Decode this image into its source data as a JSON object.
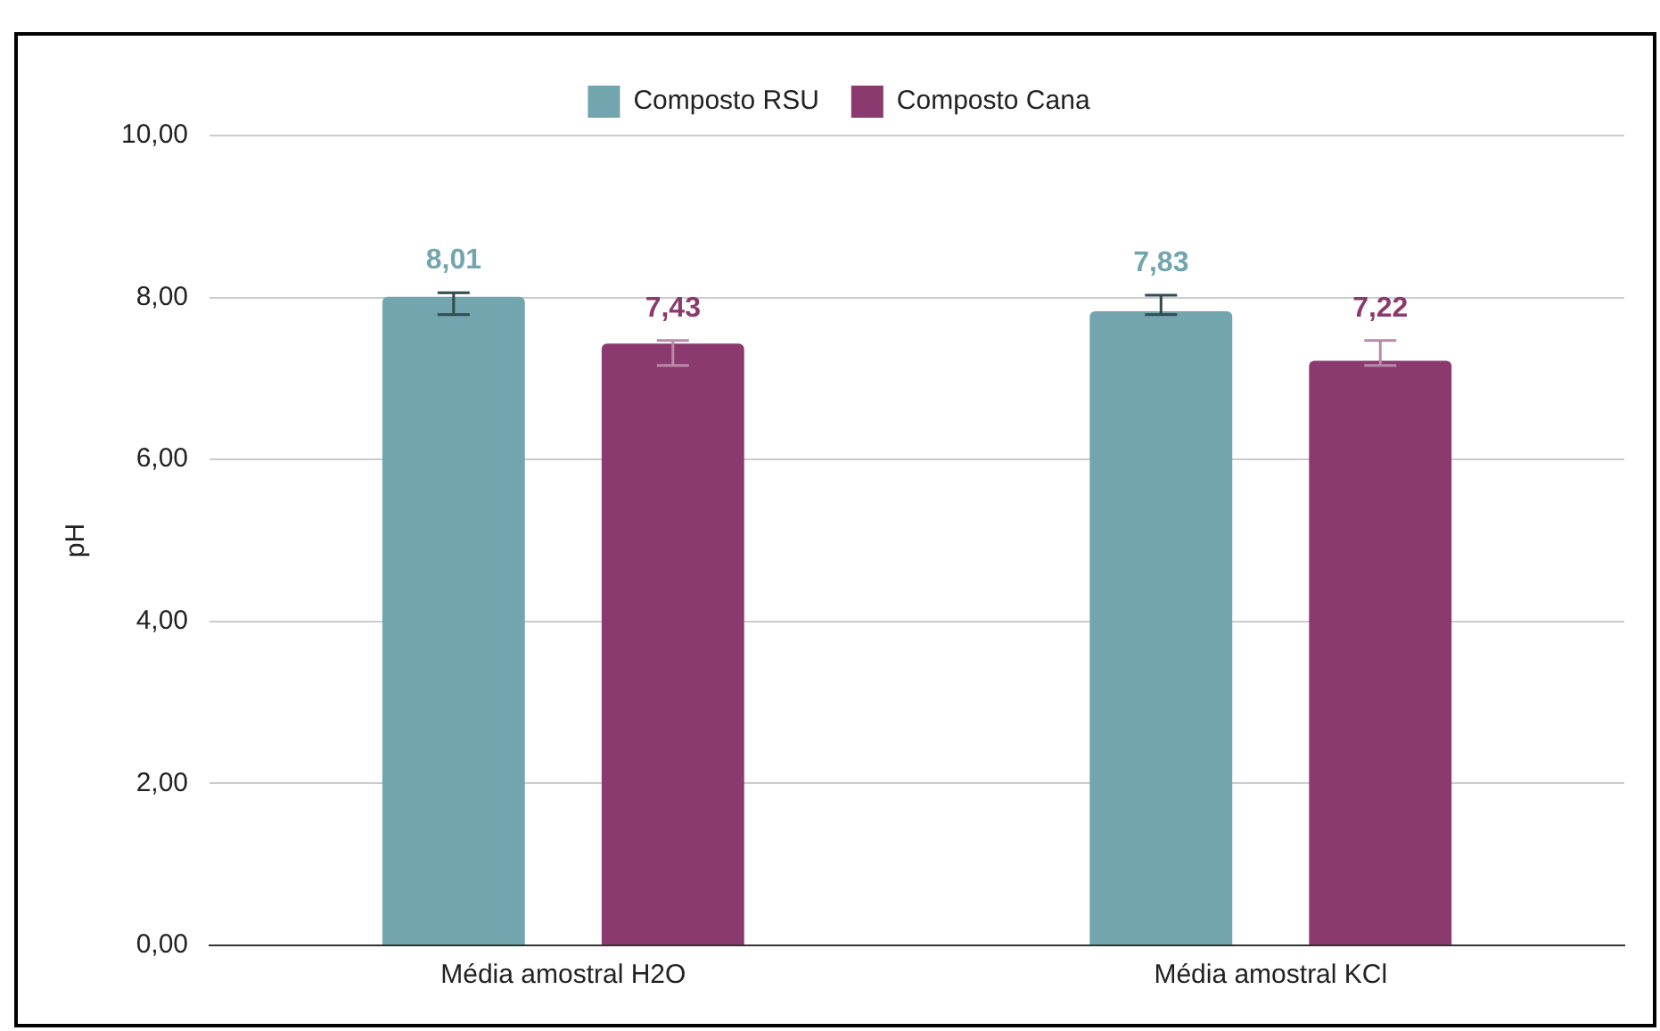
{
  "chart_data": {
    "type": "bar",
    "ylabel": "pH",
    "categories": [
      "Média amostral H2O",
      "Média amostral KCl"
    ],
    "series": [
      {
        "name": "Composto RSU",
        "color": "#72a5ae",
        "values": [
          8.01,
          7.83
        ],
        "errors": [
          [
            7.79,
            8.06
          ],
          [
            7.79,
            8.03
          ]
        ],
        "value_labels": [
          "8,01",
          "7,83"
        ]
      },
      {
        "name": "Composto Cana",
        "color": "#8b3a6f",
        "values": [
          7.43,
          7.22
        ],
        "errors": [
          [
            7.16,
            7.47
          ],
          [
            7.16,
            7.47
          ]
        ],
        "value_labels": [
          "7,43",
          "7,22"
        ]
      }
    ],
    "ylim": [
      0,
      10
    ],
    "yticks": [
      {
        "value": 0,
        "label": "0,00"
      },
      {
        "value": 2,
        "label": "2,00"
      },
      {
        "value": 4,
        "label": "4,00"
      },
      {
        "value": 6,
        "label": "6,00"
      },
      {
        "value": 8,
        "label": "8,00"
      },
      {
        "value": 10,
        "label": "10,00"
      }
    ],
    "grid": "y",
    "legend": "top"
  }
}
